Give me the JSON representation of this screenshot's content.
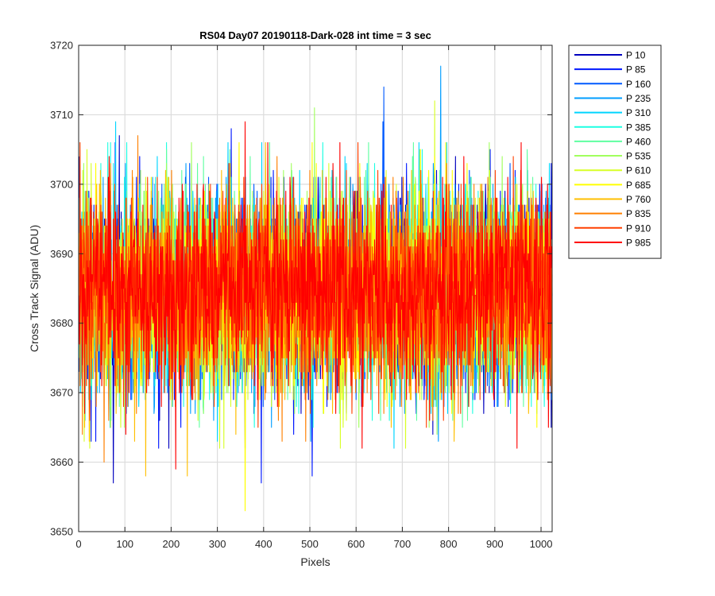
{
  "chart_data": {
    "type": "line",
    "title": "RS04 Day07 20190118-Dark-028 int time = 3 sec",
    "xlabel": "Pixels",
    "ylabel": "Cross Track Signal (ADU)",
    "xlim": [
      0,
      1024
    ],
    "ylim": [
      3650,
      3720
    ],
    "xticks": [
      0,
      100,
      200,
      300,
      400,
      500,
      600,
      700,
      800,
      900,
      1000
    ],
    "yticks": [
      3650,
      3660,
      3670,
      3680,
      3690,
      3700,
      3710,
      3720
    ],
    "grid": true,
    "legend_position": "outside-top-right",
    "x_range": [
      1,
      1024
    ],
    "series": [
      {
        "name": "P 10",
        "color": "#0000bf",
        "mean": 3684.5,
        "notable": [
          [
            75,
            3657
          ],
          [
            88,
            3707
          ]
        ]
      },
      {
        "name": "P 85",
        "color": "#0017ff",
        "mean": 3684.5,
        "notable": [
          [
            505,
            3658
          ],
          [
            330,
            3708
          ],
          [
            395,
            3657
          ]
        ]
      },
      {
        "name": "P 160",
        "color": "#005aff",
        "mean": 3684.5,
        "notable": [
          [
            658,
            3709
          ],
          [
            660,
            3714
          ]
        ]
      },
      {
        "name": "P 235",
        "color": "#009dff",
        "mean": 3684.5,
        "notable": [
          [
            783,
            3717
          ]
        ]
      },
      {
        "name": "P 310",
        "color": "#00d5ff",
        "mean": 3684.5,
        "notable": [
          [
            80,
            3709
          ]
        ]
      },
      {
        "name": "P 385",
        "color": "#1cffe2",
        "mean": 3684.5,
        "notable": []
      },
      {
        "name": "P 460",
        "color": "#5fffa0",
        "mean": 3684.5,
        "notable": []
      },
      {
        "name": "P 535",
        "color": "#a1ff5e",
        "mean": 3684.5,
        "notable": [
          [
            510,
            3711
          ]
        ]
      },
      {
        "name": "P 610",
        "color": "#d8ff27",
        "mean": 3684.5,
        "notable": [
          [
            770,
            3712
          ]
        ]
      },
      {
        "name": "P 685",
        "color": "#ffff00",
        "mean": 3684.5,
        "notable": [
          [
            360,
            3653
          ]
        ]
      },
      {
        "name": "P 760",
        "color": "#ffbf00",
        "mean": 3684.5,
        "notable": [
          [
            235,
            3658
          ],
          [
            145,
            3658
          ]
        ]
      },
      {
        "name": "P 835",
        "color": "#ff8000",
        "mean": 3684.5,
        "notable": [
          [
            55,
            3660
          ],
          [
            128,
            3707
          ]
        ]
      },
      {
        "name": "P 910",
        "color": "#ff4000",
        "mean": 3684.5,
        "notable": [
          [
            3,
            3706
          ]
        ]
      },
      {
        "name": "P 985",
        "color": "#ff0000",
        "mean": 3684.5,
        "notable": [
          [
            360,
            3709
          ],
          [
            210,
            3659
          ]
        ]
      }
    ]
  }
}
